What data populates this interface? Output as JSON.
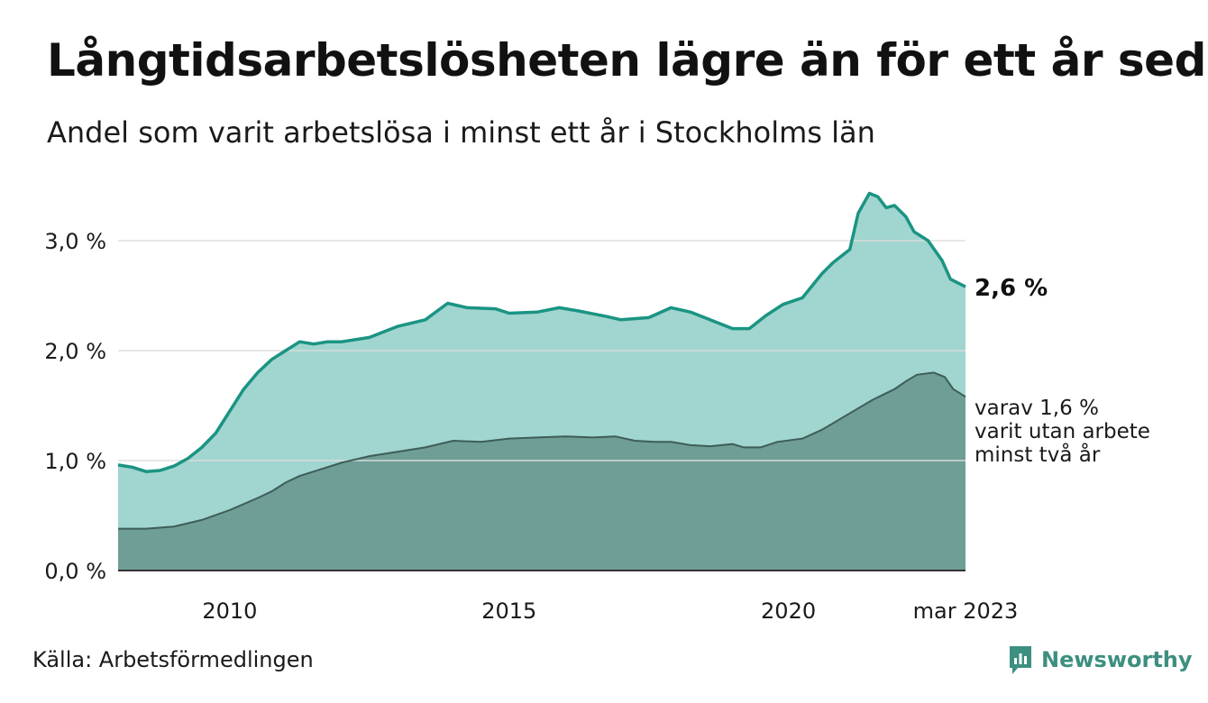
{
  "title": "Långtidsarbetslösheten lägre än för ett år sedan",
  "subtitle": "Andel som varit arbetslösa i minst ett år i Stockholms län",
  "source": "Källa: Arbetsförmedlingen",
  "brand": {
    "name": "Newsworthy",
    "icon": "newsworthy-logo-icon"
  },
  "colors": {
    "area_total": "#a1d5cf",
    "line_total": "#1a9483",
    "area_sub": "#6e9e96",
    "line_sub": "#3e5d58",
    "grid": "#dddddd",
    "brand": "#3d8f80"
  },
  "chart_data": {
    "type": "area",
    "x_start": 2008.0,
    "x_end": 2023.17,
    "ylim": [
      0,
      3.5
    ],
    "y_ticks": [
      {
        "value": 0,
        "label": "0,0 %"
      },
      {
        "value": 1,
        "label": "1,0 %"
      },
      {
        "value": 2,
        "label": "2,0 %"
      },
      {
        "value": 3,
        "label": "3,0 %"
      }
    ],
    "x_ticks": [
      {
        "value": 2010,
        "label": "2010"
      },
      {
        "value": 2015,
        "label": "2015"
      },
      {
        "value": 2020,
        "label": "2020"
      },
      {
        "value": 2023.17,
        "label": "mar 2023"
      }
    ],
    "grid": true,
    "series": [
      {
        "key": "total",
        "end_label": "2,6 %",
        "points": [
          [
            2008.0,
            0.96
          ],
          [
            2008.25,
            0.94
          ],
          [
            2008.5,
            0.9
          ],
          [
            2008.75,
            0.91
          ],
          [
            2009.0,
            0.95
          ],
          [
            2009.25,
            1.02
          ],
          [
            2009.5,
            1.12
          ],
          [
            2009.75,
            1.25
          ],
          [
            2010.0,
            1.45
          ],
          [
            2010.25,
            1.65
          ],
          [
            2010.5,
            1.8
          ],
          [
            2010.75,
            1.92
          ],
          [
            2011.0,
            2.0
          ],
          [
            2011.25,
            2.08
          ],
          [
            2011.5,
            2.06
          ],
          [
            2011.75,
            2.08
          ],
          [
            2012.0,
            2.08
          ],
          [
            2012.5,
            2.12
          ],
          [
            2013.0,
            2.22
          ],
          [
            2013.5,
            2.28
          ],
          [
            2013.9,
            2.43
          ],
          [
            2014.25,
            2.39
          ],
          [
            2014.75,
            2.38
          ],
          [
            2015.0,
            2.34
          ],
          [
            2015.5,
            2.35
          ],
          [
            2015.9,
            2.39
          ],
          [
            2016.25,
            2.36
          ],
          [
            2016.75,
            2.31
          ],
          [
            2017.0,
            2.28
          ],
          [
            2017.5,
            2.3
          ],
          [
            2017.9,
            2.39
          ],
          [
            2018.25,
            2.35
          ],
          [
            2018.75,
            2.25
          ],
          [
            2019.0,
            2.2
          ],
          [
            2019.3,
            2.2
          ],
          [
            2019.6,
            2.32
          ],
          [
            2019.9,
            2.42
          ],
          [
            2020.25,
            2.48
          ],
          [
            2020.6,
            2.7
          ],
          [
            2020.8,
            2.8
          ],
          [
            2021.1,
            2.92
          ],
          [
            2021.25,
            3.25
          ],
          [
            2021.45,
            3.43
          ],
          [
            2021.6,
            3.4
          ],
          [
            2021.75,
            3.3
          ],
          [
            2021.9,
            3.32
          ],
          [
            2022.1,
            3.22
          ],
          [
            2022.25,
            3.08
          ],
          [
            2022.5,
            3.0
          ],
          [
            2022.75,
            2.82
          ],
          [
            2022.9,
            2.65
          ],
          [
            2023.17,
            2.58
          ]
        ]
      },
      {
        "key": "two_years",
        "end_label_lines": [
          "varav 1,6 %",
          "varit utan arbete",
          "minst två år"
        ],
        "points": [
          [
            2008.0,
            0.38
          ],
          [
            2008.5,
            0.38
          ],
          [
            2009.0,
            0.4
          ],
          [
            2009.5,
            0.46
          ],
          [
            2010.0,
            0.55
          ],
          [
            2010.5,
            0.66
          ],
          [
            2010.75,
            0.72
          ],
          [
            2011.0,
            0.8
          ],
          [
            2011.25,
            0.86
          ],
          [
            2011.5,
            0.9
          ],
          [
            2012.0,
            0.98
          ],
          [
            2012.5,
            1.04
          ],
          [
            2013.0,
            1.08
          ],
          [
            2013.5,
            1.12
          ],
          [
            2014.0,
            1.18
          ],
          [
            2014.5,
            1.17
          ],
          [
            2015.0,
            1.2
          ],
          [
            2015.5,
            1.21
          ],
          [
            2016.0,
            1.22
          ],
          [
            2016.5,
            1.21
          ],
          [
            2016.9,
            1.22
          ],
          [
            2017.25,
            1.18
          ],
          [
            2017.6,
            1.17
          ],
          [
            2017.9,
            1.17
          ],
          [
            2018.25,
            1.14
          ],
          [
            2018.6,
            1.13
          ],
          [
            2019.0,
            1.15
          ],
          [
            2019.2,
            1.12
          ],
          [
            2019.5,
            1.12
          ],
          [
            2019.8,
            1.17
          ],
          [
            2020.25,
            1.2
          ],
          [
            2020.6,
            1.28
          ],
          [
            2021.0,
            1.4
          ],
          [
            2021.5,
            1.55
          ],
          [
            2021.9,
            1.65
          ],
          [
            2022.1,
            1.72
          ],
          [
            2022.3,
            1.78
          ],
          [
            2022.6,
            1.8
          ],
          [
            2022.8,
            1.76
          ],
          [
            2022.95,
            1.65
          ],
          [
            2023.17,
            1.58
          ]
        ]
      }
    ]
  }
}
